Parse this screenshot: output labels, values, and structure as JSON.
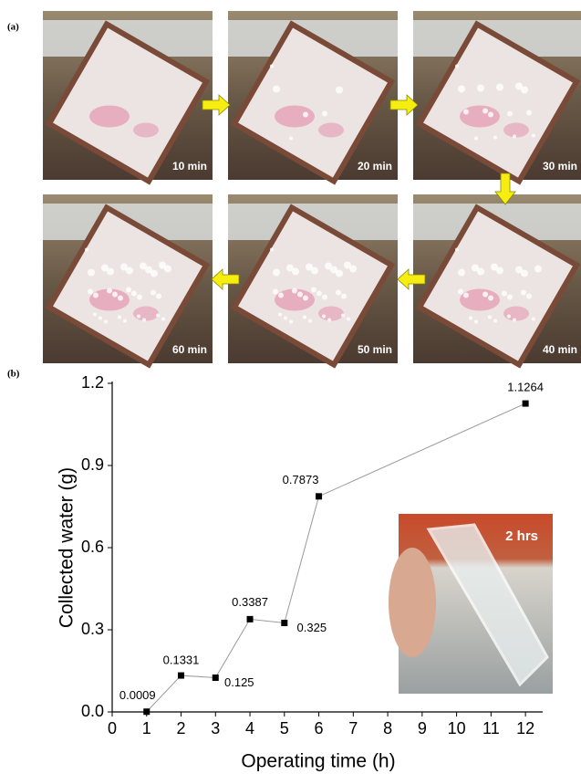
{
  "panel_labels": [
    "(a)",
    "(b)"
  ],
  "photos": [
    {
      "label": "10 min"
    },
    {
      "label": "20 min"
    },
    {
      "label": "30 min"
    },
    {
      "label": "40 min"
    },
    {
      "label": "50 min"
    },
    {
      "label": "60 min"
    }
  ],
  "chart_data": {
    "type": "line",
    "x": [
      1,
      2,
      3,
      4,
      5,
      6,
      12
    ],
    "series": [
      {
        "color": "#9a9a9a",
        "marker_color": "#000000",
        "values": [
          0.0009,
          0.1331,
          0.125,
          0.3387,
          0.325,
          0.7873,
          1.1264
        ]
      }
    ],
    "x_label": "Operating time (h)",
    "y_label": "Collected water (g)",
    "xlim": [
      0,
      12.5
    ],
    "xticks": [
      0,
      1,
      2,
      3,
      4,
      5,
      6,
      7,
      8,
      9,
      10,
      11,
      12
    ],
    "ylim": [
      0,
      1.2
    ],
    "yticks": [
      {
        "value": 0,
        "label": "0.0"
      },
      {
        "value": 0.3,
        "label": "0.3"
      },
      {
        "value": 0.6,
        "label": "0.6"
      },
      {
        "value": 0.9,
        "label": "0.9"
      },
      {
        "value": 1.2,
        "label": "1.2"
      }
    ],
    "data_labels": true,
    "inset": {
      "label": "2 hrs"
    }
  }
}
